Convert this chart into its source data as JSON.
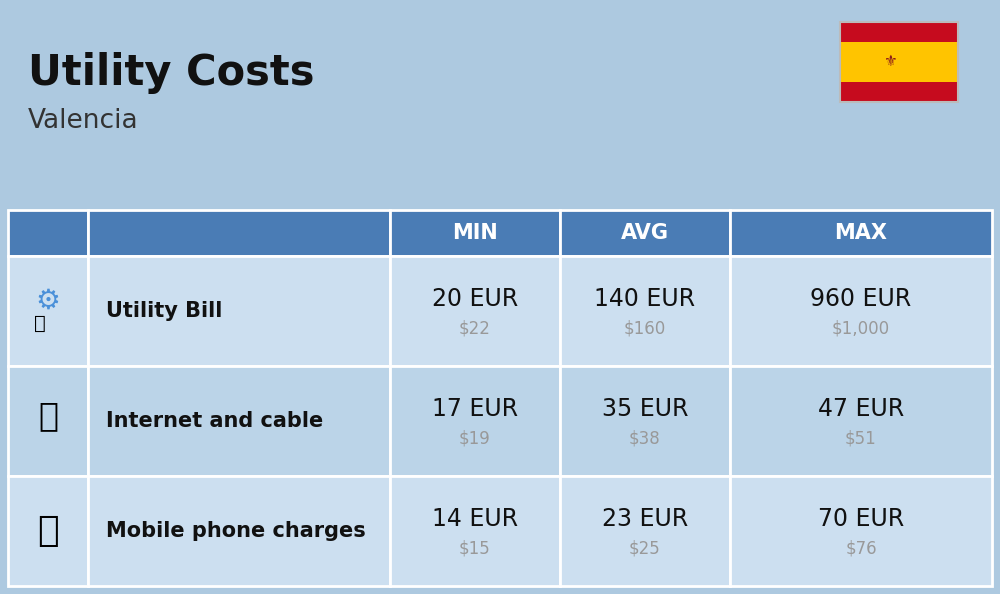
{
  "title": "Utility Costs",
  "subtitle": "Valencia",
  "background_color": "#adc9e0",
  "header_bg_color": "#4a7cb5",
  "header_text_color": "#ffffff",
  "row_bg_color_1": "#ccdff0",
  "row_bg_color_2": "#bbd4e8",
  "cell_border_color": "#ffffff",
  "rows": [
    {
      "label": "Utility Bill",
      "min_eur": "20 EUR",
      "min_usd": "$22",
      "avg_eur": "140 EUR",
      "avg_usd": "$160",
      "max_eur": "960 EUR",
      "max_usd": "$1,000"
    },
    {
      "label": "Internet and cable",
      "min_eur": "17 EUR",
      "min_usd": "$19",
      "avg_eur": "35 EUR",
      "avg_usd": "$38",
      "max_eur": "47 EUR",
      "max_usd": "$51"
    },
    {
      "label": "Mobile phone charges",
      "min_eur": "14 EUR",
      "min_usd": "$15",
      "avg_eur": "23 EUR",
      "avg_usd": "$25",
      "max_eur": "70 EUR",
      "max_usd": "$76"
    }
  ],
  "title_fontsize": 30,
  "subtitle_fontsize": 19,
  "header_fontsize": 15,
  "label_fontsize": 15,
  "value_fontsize": 17,
  "usd_fontsize": 12,
  "usd_color": "#999999",
  "label_color": "#111111",
  "value_color": "#111111",
  "flag_red": "#c60b1e",
  "flag_yellow": "#ffc400"
}
